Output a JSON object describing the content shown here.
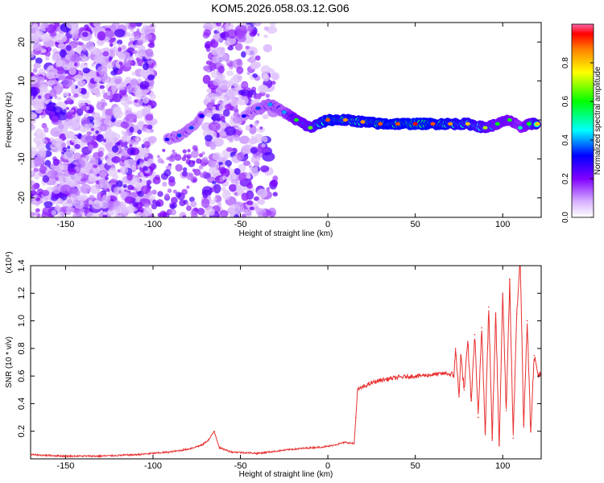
{
  "title": "KOM5.2026.058.03.12.G06",
  "chart_data": [
    {
      "type": "heatmap",
      "xlabel": "Height of straight line (km)",
      "ylabel": "Frequency (Hz)",
      "xlim": [
        -170,
        122
      ],
      "ylim": [
        -25,
        25
      ],
      "x_ticks": [
        -150,
        -100,
        -50,
        0,
        50,
        100
      ],
      "y_ticks": [
        -20,
        -10,
        0,
        10,
        20
      ],
      "colorbar": {
        "label": "Normalized spectral amplitude",
        "range": [
          0,
          1
        ],
        "ticks": [
          "0.0",
          "0.2",
          "0.4",
          "0.6",
          "0.8"
        ],
        "colors": [
          "#f2f2f2",
          "#cc99ff",
          "#7f00ff",
          "#0000ff",
          "#00ffff",
          "#00ff00",
          "#ffff00",
          "#ff8000",
          "#ff0000",
          "#ff66aa"
        ]
      },
      "signal_track": [
        {
          "x": -92,
          "y": -5,
          "amp": 0.3
        },
        {
          "x": -85,
          "y": -4,
          "amp": 0.35
        },
        {
          "x": -78,
          "y": -2,
          "amp": 0.35
        },
        {
          "x": -72,
          "y": 1,
          "amp": 0.3
        },
        {
          "x": -48,
          "y": 1,
          "amp": 0.3
        },
        {
          "x": -40,
          "y": 3,
          "amp": 0.35
        },
        {
          "x": -33,
          "y": 4,
          "amp": 0.4
        },
        {
          "x": -25,
          "y": 2,
          "amp": 0.4
        },
        {
          "x": -18,
          "y": 0,
          "amp": 0.6
        },
        {
          "x": -10,
          "y": -2,
          "amp": 0.65
        },
        {
          "x": 0,
          "y": 0,
          "amp": 0.9
        },
        {
          "x": 10,
          "y": 0,
          "amp": 0.85
        },
        {
          "x": 20,
          "y": -0.5,
          "amp": 0.85
        },
        {
          "x": 30,
          "y": -1,
          "amp": 0.9
        },
        {
          "x": 40,
          "y": -1,
          "amp": 0.9
        },
        {
          "x": 50,
          "y": -1,
          "amp": 0.95
        },
        {
          "x": 60,
          "y": -1,
          "amp": 0.9
        },
        {
          "x": 70,
          "y": -1,
          "amp": 0.85
        },
        {
          "x": 80,
          "y": -1,
          "amp": 0.8
        },
        {
          "x": 90,
          "y": -2,
          "amp": 0.7
        },
        {
          "x": 97,
          "y": -1,
          "amp": 0.6
        },
        {
          "x": 104,
          "y": 0,
          "amp": 0.6
        },
        {
          "x": 110,
          "y": -2,
          "amp": 0.5
        },
        {
          "x": 115,
          "y": -1,
          "amp": 0.6
        },
        {
          "x": 120,
          "y": -1,
          "amp": 0.8
        }
      ]
    },
    {
      "type": "line",
      "xlabel": "Height of straight line (km)",
      "ylabel": "SNR (10 * v/v)",
      "yscale_label": "(x10⁴)",
      "xlim": [
        -170,
        122
      ],
      "ylim": [
        0,
        1.4
      ],
      "x_ticks": [
        -150,
        -100,
        -50,
        0,
        50,
        100
      ],
      "y_ticks": [
        "0.2",
        "0.4",
        "0.6",
        "0.8",
        "1.0",
        "1.2",
        "1.4"
      ],
      "series_color": "#e83030",
      "x": [
        -170,
        -150,
        -130,
        -110,
        -90,
        -80,
        -72,
        -68,
        -65,
        -62,
        -55,
        -40,
        -20,
        0,
        10,
        15,
        16,
        17,
        20,
        25,
        30,
        40,
        50,
        60,
        68,
        72,
        73,
        75,
        76,
        78,
        80,
        82,
        84,
        86,
        88,
        90,
        92,
        94,
        96,
        98,
        100,
        102,
        104,
        106,
        108,
        110,
        112,
        114,
        116,
        118,
        120,
        122
      ],
      "y": [
        0.03,
        0.02,
        0.02,
        0.03,
        0.05,
        0.07,
        0.1,
        0.14,
        0.2,
        0.08,
        0.05,
        0.04,
        0.07,
        0.09,
        0.12,
        0.11,
        0.3,
        0.5,
        0.52,
        0.55,
        0.57,
        0.59,
        0.6,
        0.61,
        0.62,
        0.6,
        0.8,
        0.45,
        0.75,
        0.5,
        0.85,
        0.42,
        0.9,
        0.3,
        0.95,
        0.2,
        1.1,
        0.15,
        1.05,
        0.1,
        1.2,
        0.35,
        1.3,
        0.15,
        1.05,
        1.45,
        0.25,
        1.0,
        0.2,
        0.75,
        0.62,
        0.6
      ]
    }
  ]
}
